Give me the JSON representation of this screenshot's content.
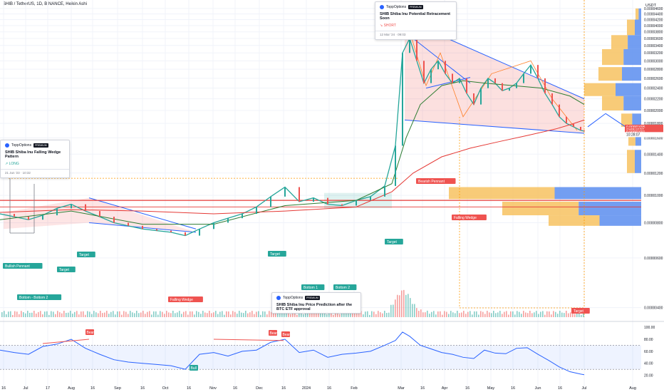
{
  "chart_data": [
    {
      "type": "line",
      "title": "SHIB / TetherUS, 1D, BINANCE, Heikin Ashi",
      "currency_label": "USDT",
      "y_scale": "log",
      "ylim": [
        3.7e-06,
        4.65e-05
      ],
      "y_ticks": [
        "0.00004600",
        "0.00004400",
        "0.00004200",
        "0.00004000",
        "0.00003800",
        "0.00003600",
        "0.00003400",
        "0.00003200",
        "0.00003000",
        "0.00002800",
        "0.00002600",
        "0.00002400",
        "0.00002200",
        "0.00002000",
        "0.00001800",
        "0.00001600",
        "0.00001400",
        "0.00001200",
        "0.00001000",
        "0.00000800",
        "0.00000600",
        "0.00000400"
      ],
      "x_ticks": [
        "16",
        "Jul",
        "17",
        "Aug",
        "16",
        "Sep",
        "16",
        "Oct",
        "16",
        "Nov",
        "16",
        "Dec",
        "16",
        "2024",
        "16",
        "Feb",
        "Mar",
        "16",
        "Apr",
        "16",
        "May",
        "16",
        "Jun",
        "16",
        "Jul",
        "Aug"
      ],
      "price_labels": [
        "0.00001695",
        "SHIBUSDT",
        "0.00001691",
        "10:28:07"
      ],
      "series": [
        {
          "name": "price",
          "color": "#26a69a",
          "x": [
            0,
            20,
            40,
            60,
            80,
            100,
            120,
            140,
            160,
            180,
            200,
            220,
            240,
            260,
            280,
            300,
            320,
            340,
            360,
            380,
            400,
            420,
            440,
            460,
            480,
            500,
            520,
            540,
            555,
            565,
            575,
            585,
            595,
            605,
            615,
            625,
            635,
            645,
            655,
            665,
            675,
            685,
            695,
            705,
            715,
            725,
            735,
            745,
            755,
            765,
            775,
            785,
            795,
            805,
            815,
            820
          ],
          "y": [
            8.6e-06,
            8.4e-06,
            8.2e-06,
            8.5e-06,
            9e-06,
            9.3e-06,
            8.8e-06,
            8.4e-06,
            8e-06,
            7.8e-06,
            7.6e-06,
            7.5e-06,
            7.4e-06,
            7.2e-06,
            7.6e-06,
            8e-06,
            8.3e-06,
            8.6e-06,
            9.1e-06,
            9.9e-06,
            1.07e-05,
            9.5e-06,
            9.8e-06,
            9.3e-06,
            9.2e-06,
            9.6e-06,
            9.9e-06,
            1.08e-05,
            1.5e-05,
            3.2e-05,
            3.6e-05,
            3e-05,
            2.5e-05,
            2.8e-05,
            3e-05,
            2.7e-05,
            2.5e-05,
            2.6e-05,
            2.3e-05,
            2.1e-05,
            2.4e-05,
            2.6e-05,
            2.5e-05,
            2.35e-05,
            2.4e-05,
            2.5e-05,
            2.7e-05,
            2.9e-05,
            2.6e-05,
            2.3e-05,
            2.1e-05,
            1.9e-05,
            1.8e-05,
            1.75e-05,
            1.7e-05,
            1.69e-05
          ]
        },
        {
          "name": "ema_fast",
          "color": "#2e7d32",
          "x": [
            0,
            100,
            200,
            300,
            400,
            500,
            550,
            570,
            590,
            620,
            650,
            680,
            720,
            760,
            800,
            820
          ],
          "y": [
            8.2e-06,
            8.8e-06,
            7.9e-06,
            7.9e-06,
            9.2e-06,
            9.6e-06,
            1.1e-05,
            1.6e-05,
            2.1e-05,
            2.45e-05,
            2.55e-05,
            2.5e-05,
            2.45e-05,
            2.4e-05,
            2.25e-05,
            2.1e-05
          ]
        },
        {
          "name": "ema_slow",
          "color": "#e53935",
          "x": [
            0,
            100,
            200,
            300,
            400,
            500,
            550,
            580,
            620,
            660,
            700,
            740,
            780,
            800,
            820
          ],
          "y": [
            8.7e-06,
            8.9e-06,
            8.8e-06,
            8.6e-06,
            8.8e-06,
            9.1e-06,
            1.03e-05,
            1.2e-05,
            1.37e-05,
            1.47e-05,
            1.55e-05,
            1.63e-05,
            1.72e-05,
            1.78e-05,
            1.85e-05
          ]
        }
      ],
      "pattern_labels": [
        "Bullish Pennant",
        "Target",
        "Bottom - Bottom 2",
        "Target",
        "Target",
        "Falling Wedge",
        "Target",
        "Bottom 1",
        "Bottom 2",
        "Target",
        "Bearish Pennant",
        "Falling Wedge",
        "Target"
      ],
      "volume_profile_side": "right",
      "grid": true
    },
    {
      "type": "line",
      "title": "",
      "ylim": [
        10,
        105
      ],
      "y_ticks": [
        "100.00",
        "80.00",
        "60.00",
        "40.00",
        "20.00"
      ],
      "band": [
        30,
        70
      ],
      "series": [
        {
          "name": "rsi",
          "color": "#2962ff",
          "x": [
            0,
            20,
            40,
            60,
            80,
            100,
            120,
            140,
            160,
            180,
            200,
            220,
            240,
            260,
            280,
            300,
            320,
            340,
            360,
            380,
            400,
            420,
            440,
            460,
            480,
            500,
            520,
            540,
            555,
            565,
            575,
            590,
            605,
            620,
            635,
            650,
            665,
            680,
            695,
            710,
            725,
            740,
            755,
            770,
            785,
            800,
            815,
            820
          ],
          "y": [
            62,
            58,
            55,
            68,
            72,
            80,
            65,
            55,
            46,
            42,
            40,
            38,
            36,
            30,
            55,
            58,
            52,
            60,
            62,
            75,
            80,
            58,
            62,
            50,
            55,
            57,
            60,
            70,
            78,
            92,
            85,
            70,
            64,
            58,
            55,
            50,
            48,
            62,
            57,
            56,
            65,
            66,
            55,
            45,
            34,
            26,
            22,
            21
          ]
        }
      ],
      "labels": [
        "Bear",
        "Bear",
        "Bear",
        "Bull"
      ]
    }
  ],
  "popups": [
    {
      "brand": "ToppOptions",
      "tag": "PREMIUM",
      "title": "SHIB Shiba Inu Falling Wedge Pattern",
      "direction": "↗ LONG",
      "date": "21 Jun '23 · 10:32"
    },
    {
      "brand": "ToppOptions",
      "tag": "PREMIUM",
      "title": "SHIB Shiba Inu Potential Retracement Soon",
      "direction": "↘ SHORT",
      "date": "12 Mar '24 · 09:03"
    },
    {
      "brand": "ToppOptions",
      "tag": "PREMIUM",
      "title": "SHIB Shiba Inu Price Prediction after the BTC ETF approval",
      "direction": "",
      "date": ""
    }
  ],
  "colors": {
    "up": "#26a69a",
    "down": "#ef5350",
    "trend": "#2962ff",
    "accent": "#ff9800"
  }
}
